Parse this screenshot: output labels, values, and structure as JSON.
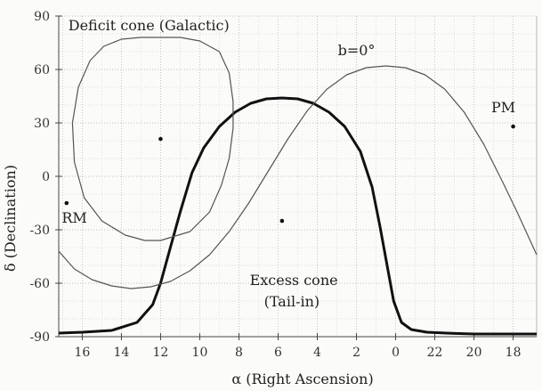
{
  "chart_data": {
    "type": "line",
    "xlabel": "α (Right Ascension)",
    "ylabel": "δ (Declination)",
    "x_axis": {
      "direction": "decreasing",
      "range_hours": [
        17.2,
        16.8
      ],
      "wraps_at": 0,
      "tick_labels": [
        "16",
        "14",
        "12",
        "10",
        "8",
        "6",
        "4",
        "2",
        "0",
        "22",
        "20",
        "18"
      ],
      "tick_positions_hours": [
        16,
        14,
        12,
        10,
        8,
        6,
        4,
        2,
        0,
        22,
        20,
        18
      ]
    },
    "y_axis": {
      "range": [
        -90,
        90
      ],
      "tick_labels": [
        "-90",
        "-60",
        "-30",
        "0",
        "30",
        "60",
        "90"
      ],
      "tick_values": [
        -90,
        -60,
        -30,
        0,
        30,
        60,
        90
      ]
    },
    "grid": true,
    "annotations": [
      {
        "text": "Deficit cone (Galactic)",
        "x": 12.6,
        "y": 82
      },
      {
        "text": "b=0°",
        "x": 2.0,
        "y": 68
      },
      {
        "text": "PM",
        "x": 18.5,
        "y": 36
      },
      {
        "text": "RM",
        "x": 16.4,
        "y": -26
      },
      {
        "text": "Excess cone",
        "x": 5.2,
        "y": -61
      },
      {
        "text": "(Tail-in)",
        "x": 5.3,
        "y": -73
      }
    ],
    "points": [
      {
        "name": "deficit-cone-center",
        "x": 12.0,
        "y": 21
      },
      {
        "name": "excess-cone-center",
        "x": 5.8,
        "y": -25
      },
      {
        "name": "pm-point",
        "x": 18.0,
        "y": 28
      },
      {
        "name": "rm-point",
        "x": 16.8,
        "y": -15
      }
    ],
    "series": [
      {
        "key": "excess",
        "style": "thick",
        "x": [
          17.2,
          16,
          14.5,
          13.2,
          12.4,
          12.0,
          11.6,
          11.0,
          10.4,
          9.8,
          9.0,
          8.2,
          7.4,
          6.6,
          5.8,
          5.0,
          4.2,
          3.4,
          2.6,
          1.8,
          1.2,
          0.8,
          0.4,
          0.1,
          -0.3,
          -0.8,
          -1.6,
          -2.6,
          -4.0,
          -5.4,
          -7.2
        ],
        "y": [
          -88,
          -87.5,
          -86.5,
          -82,
          -72,
          -60,
          -44,
          -20,
          2,
          16,
          28,
          36,
          41,
          43.5,
          44,
          43.5,
          41,
          36,
          28,
          14,
          -6,
          -28,
          -52,
          -70,
          -82,
          -86,
          -87.5,
          -88,
          -88.5,
          -88.5,
          -88.5
        ]
      },
      {
        "key": "galactic-plane",
        "style": "thin",
        "x": [
          17.2,
          16.4,
          15.5,
          14.5,
          13.5,
          12.5,
          11.5,
          10.5,
          9.5,
          8.5,
          7.5,
          6.5,
          5.5,
          4.5,
          3.5,
          2.5,
          1.5,
          0.5,
          -0.5,
          -1.5,
          -2.5,
          -3.5,
          -4.5,
          -5.5,
          -6.2,
          -7.2
        ],
        "y": [
          -42,
          -52,
          -58,
          -61.5,
          -63,
          -62,
          -59,
          -53,
          -44,
          -31,
          -15,
          3,
          21,
          37,
          49,
          57,
          61,
          62,
          61,
          57,
          49,
          36,
          18,
          -4,
          -20,
          -44
        ]
      },
      {
        "key": "deficit-cone",
        "style": "thin",
        "closed": true,
        "x": [
          12.0,
          10.5,
          9.5,
          8.9,
          8.5,
          8.3,
          8.3,
          8.5,
          9.0,
          10.0,
          11.0,
          12.0,
          13.0,
          14.0,
          14.9,
          15.6,
          16.2,
          16.5,
          16.4,
          15.9,
          15.0,
          13.8,
          12.8,
          12.0
        ],
        "y": [
          -36,
          -31,
          -20,
          -5,
          10,
          27,
          42,
          58,
          70,
          76,
          78,
          78,
          78,
          77,
          73,
          65,
          50,
          30,
          8,
          -12,
          -25,
          -33,
          -36,
          -36
        ]
      }
    ]
  }
}
